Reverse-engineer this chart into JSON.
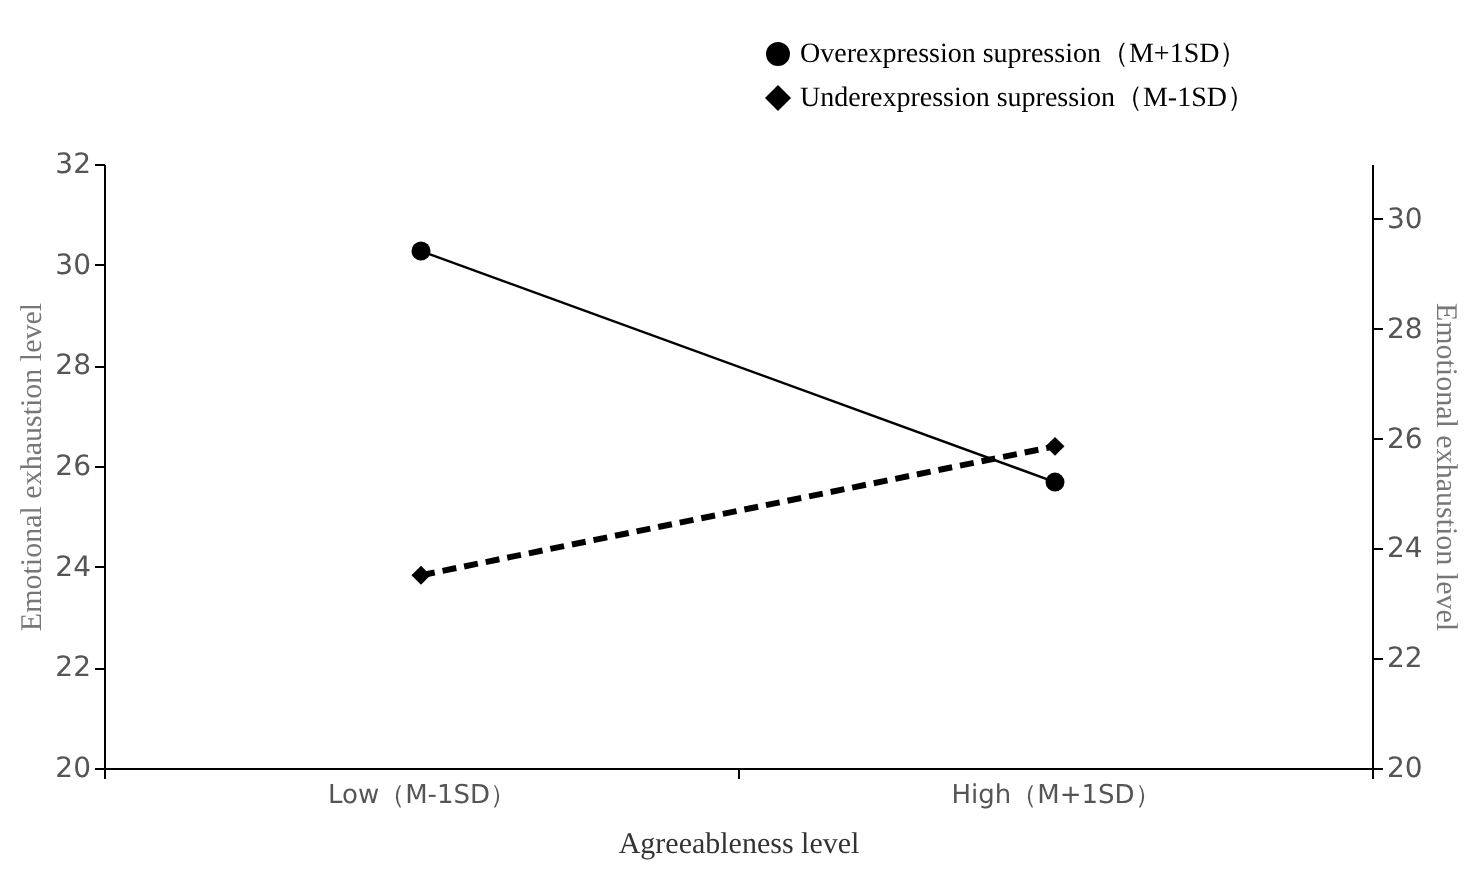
{
  "chart_data": {
    "type": "line",
    "xlabel": "Agreeableness level",
    "ylabel": "Emotional exhaustion level",
    "y2label": "Emotional exhaustion level",
    "categories": [
      "Low（M-1SD）",
      "High（M+1SD）"
    ],
    "series": [
      {
        "name": "Overexpression supression（M+1SD）",
        "color": "#000000",
        "values": [
          30.27,
          25.68
        ],
        "marker": "circle",
        "line_style": "solid"
      },
      {
        "name": "Underexpression supression（M-1SD）",
        "color": "#000000",
        "values": [
          23.83,
          26.39
        ],
        "marker": "diamond",
        "line_style": "dashed"
      }
    ],
    "ylim": [
      20,
      32
    ],
    "yticks": [
      20,
      22,
      24,
      26,
      28,
      30,
      32
    ],
    "y2lim": [
      20,
      31
    ],
    "y2ticks": [
      20,
      22,
      24,
      26,
      28,
      30
    ],
    "grid": false,
    "legend": "top right"
  }
}
